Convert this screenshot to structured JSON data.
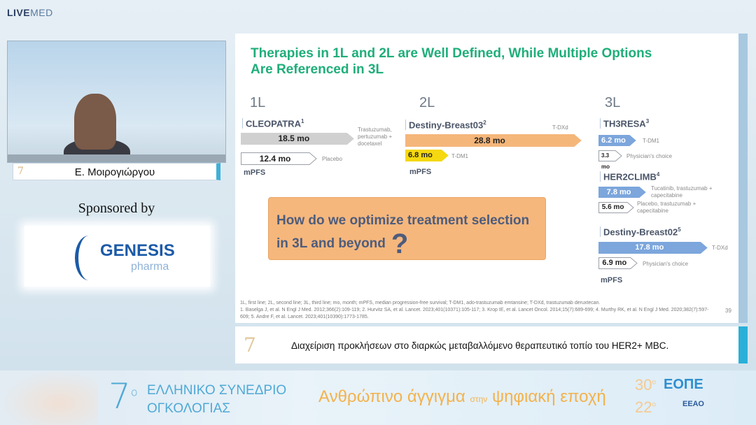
{
  "logo": {
    "live": "LIVE",
    "med": "MED"
  },
  "speaker": {
    "name": "Ε. Μοιρογιώργου",
    "badge": "7"
  },
  "sponsor": {
    "label": "Sponsored by",
    "brand": "GENESIS",
    "sub": "pharma"
  },
  "slide": {
    "title": "Therapies in 1L and 2L are Well Defined, While Multiple Options Are Referenced in 3L",
    "lines": [
      "1L",
      "2L",
      "3L"
    ],
    "trials": [
      {
        "name": "CLEOPATRA",
        "ref": "1",
        "arms": [
          {
            "value": "18.5 mo",
            "label": "Trastuzumab, pertuzumab + docetaxel"
          },
          {
            "value": "12.4 mo",
            "label": "Placebo"
          }
        ]
      },
      {
        "name": "Destiny-Breast03",
        "ref": "2",
        "arms": [
          {
            "value": "28.8 mo",
            "label": "T-DXd"
          },
          {
            "value": "6.8 mo",
            "label": "T-DM1"
          }
        ]
      },
      {
        "name": "TH3RESA",
        "ref": "3",
        "arms": [
          {
            "value": "6.2 mo",
            "label": "T-DM1"
          },
          {
            "value": "3.3 mo",
            "label": "Physician's choice"
          }
        ]
      },
      {
        "name": "HER2CLIMB",
        "ref": "4",
        "arms": [
          {
            "value": "7.8 mo",
            "label": "Tucatinib, trastuzumab + capecitabine"
          },
          {
            "value": "5.6 mo",
            "label": "Placebo, trastuzumab + capecitabine"
          }
        ]
      },
      {
        "name": "Destiny-Breast02",
        "ref": "5",
        "arms": [
          {
            "value": "17.8 mo",
            "label": "T-DXd"
          },
          {
            "value": "6.9 mo",
            "label": "Physician's choice"
          }
        ]
      }
    ],
    "endpoint": "mPFS",
    "question": "How do we optimize treatment selection in 3L and beyond",
    "question_mark": "?",
    "footnote_abbrev": "1L, first line; 2L, second line; 3L, third line; mo, month; mPFS, median progression-free survival; T-DM1, ado-trastuzumab emtansine; T-DXd, trastuzumab deruxtecan.",
    "footnote_refs": "1. Baselga J, et al. N Engl J Med. 2012;366(2):109-119; 2. Hurvitz SA, et al. Lancet. 2023;401(10371):105-117; 3. Krop IE, et al. Lancet Oncol. 2014;15(7):689-699; 4. Murthy RK, et al. N Engl J Med. 2020;382(7):597-609; 5. Andre F, et al. Lancet. 2023;401(10390):1773-1785.",
    "page": "39",
    "colors": {
      "title": "#1fae7a",
      "gray": "#d0d0d0",
      "orange": "#f5b67a",
      "yellow": "#f5d80f",
      "blue": "#7ca6dc",
      "white": "#ffffff"
    }
  },
  "caption": {
    "badge": "7",
    "text": "Διαχείριση προκλήσεων στο διαρκώς μεταβαλλόμενο θεραπευτικό τοπίο του HER2+ MBC."
  },
  "banner": {
    "number": "7",
    "number_sup": "ο",
    "line1": "ΕΛΛΗΝΙΚΟ ΣΥΝΕΔΡΙΟ",
    "line2": "ΟΓΚΟΛΟΓΙΑΣ",
    "slogan_a": "Ανθρώπινο άγγιγμα",
    "slogan_b": "στην",
    "slogan_c": "ψηφιακή εποχή",
    "r1": "30",
    "r1_sup": "ο",
    "org1": "ΕΟΠΕ",
    "r2": "22",
    "r2_sup": "ο",
    "org2": "ΕΕΑΟ"
  }
}
